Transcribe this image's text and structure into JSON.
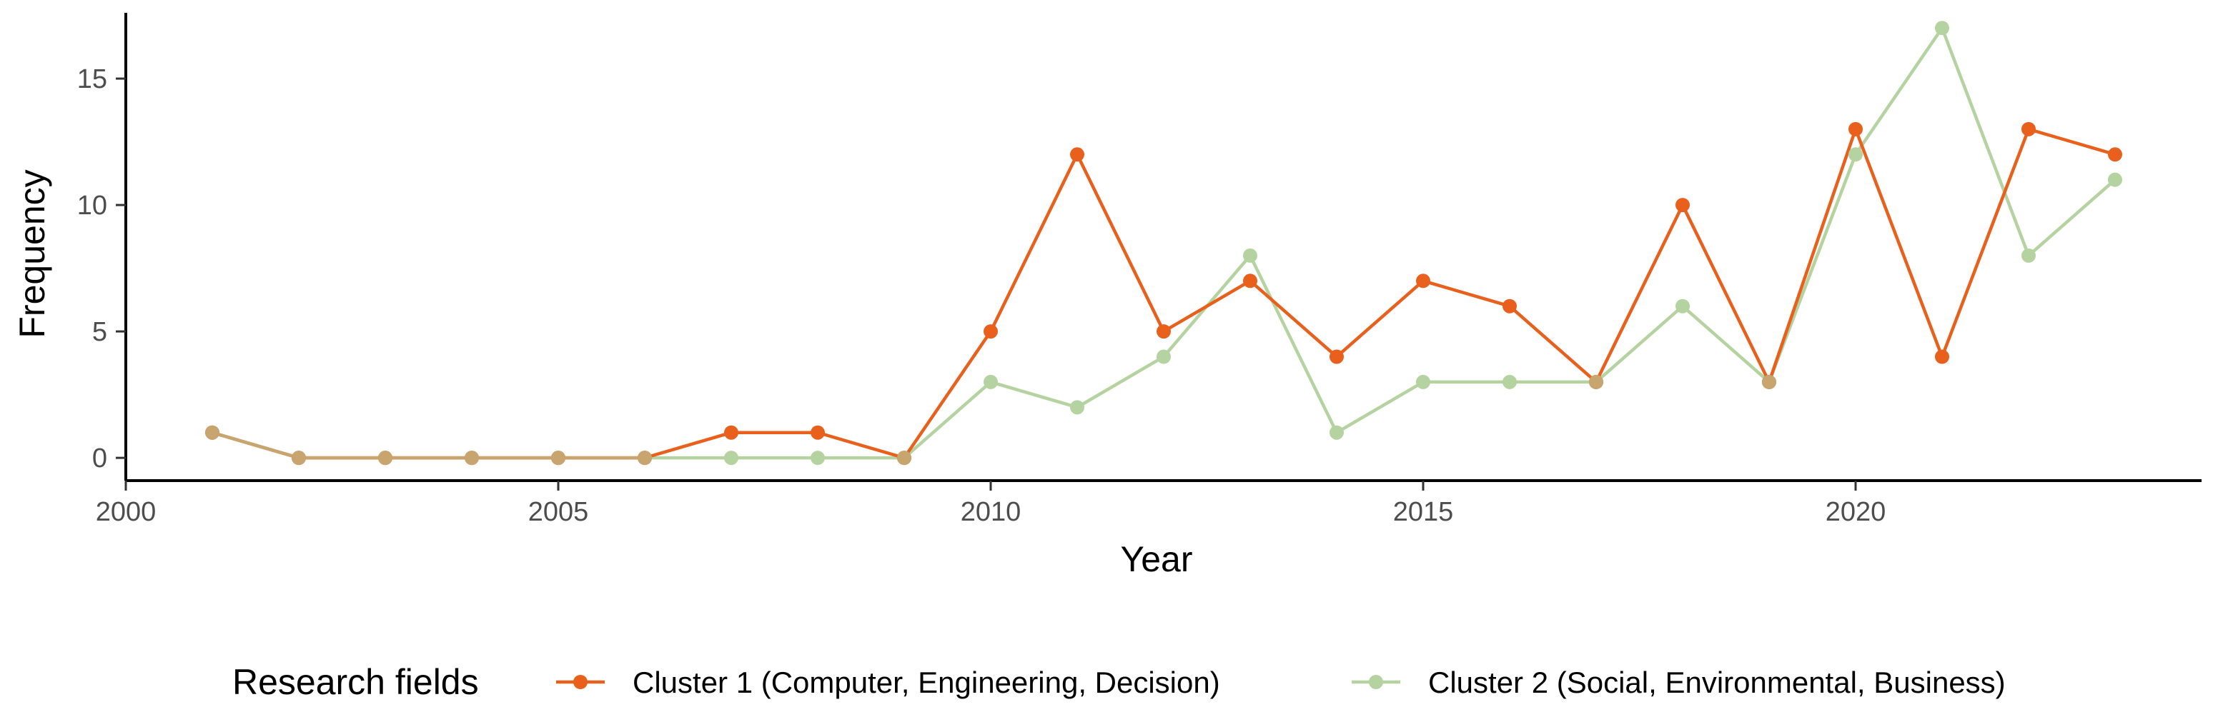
{
  "chart_data": {
    "type": "line",
    "title": "",
    "xlabel": "Year",
    "ylabel": "Frequency",
    "xlim": [
      2000,
      2024
    ],
    "ylim": [
      -0.9,
      17.6
    ],
    "x_ticks": [
      2000,
      2005,
      2010,
      2015,
      2020
    ],
    "y_ticks": [
      0,
      5,
      10,
      15
    ],
    "grid": false,
    "legend": {
      "title": "Research fields",
      "position": "bottom"
    },
    "x": [
      2001,
      2002,
      2003,
      2004,
      2005,
      2006,
      2007,
      2008,
      2009,
      2010,
      2011,
      2012,
      2013,
      2014,
      2015,
      2016,
      2017,
      2018,
      2019,
      2020,
      2021,
      2022,
      2023
    ],
    "series": [
      {
        "name": "Cluster 2 (Social, Environmental, Business)",
        "color": "#b5d3a0",
        "values": [
          1,
          0,
          0,
          0,
          0,
          0,
          0,
          0,
          0,
          3,
          2,
          4,
          8,
          1,
          3,
          3,
          3,
          6,
          3,
          12,
          17,
          8,
          11
        ]
      },
      {
        "name": "Cluster 1 (Computer, Engineering, Decision)",
        "color": "#e8601c",
        "values": [
          1,
          0,
          0,
          0,
          0,
          0,
          1,
          1,
          0,
          5,
          12,
          5,
          7,
          4,
          7,
          6,
          3,
          10,
          3,
          13,
          4,
          13,
          12
        ]
      }
    ],
    "overlap_color": "#c8a46e"
  }
}
